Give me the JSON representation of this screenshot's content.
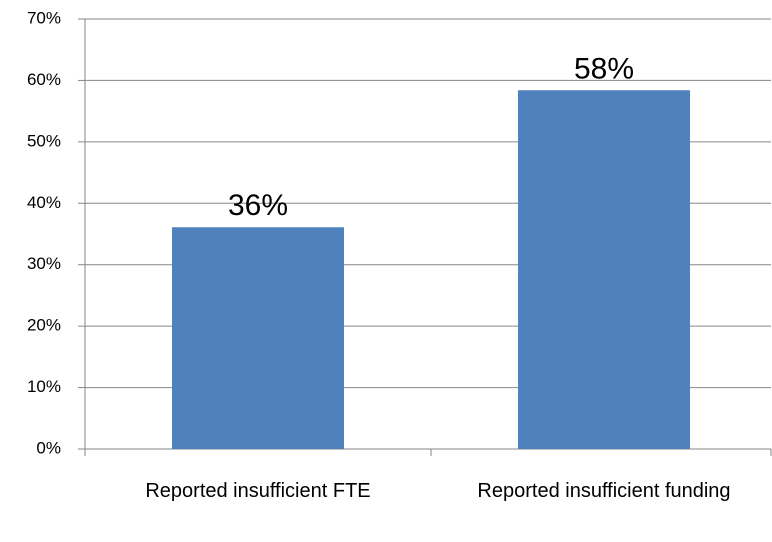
{
  "chart_data": {
    "type": "bar",
    "categories": [
      "Reported insufficient FTE",
      "Reported insufficient funding"
    ],
    "values": [
      36.1,
      58.4
    ],
    "value_labels": [
      "36%",
      "58%"
    ],
    "color": "#4f81bd",
    "ylim": [
      0,
      70
    ],
    "yticks": [
      {
        "value": 0,
        "label": "0%"
      },
      {
        "value": 10,
        "label": "10%"
      },
      {
        "value": 20,
        "label": "20%"
      },
      {
        "value": 30,
        "label": "30%"
      },
      {
        "value": 40,
        "label": "40%"
      },
      {
        "value": 50,
        "label": "50%"
      },
      {
        "value": 60,
        "label": "60%"
      },
      {
        "value": 70,
        "label": "70%"
      }
    ],
    "grid": true
  }
}
